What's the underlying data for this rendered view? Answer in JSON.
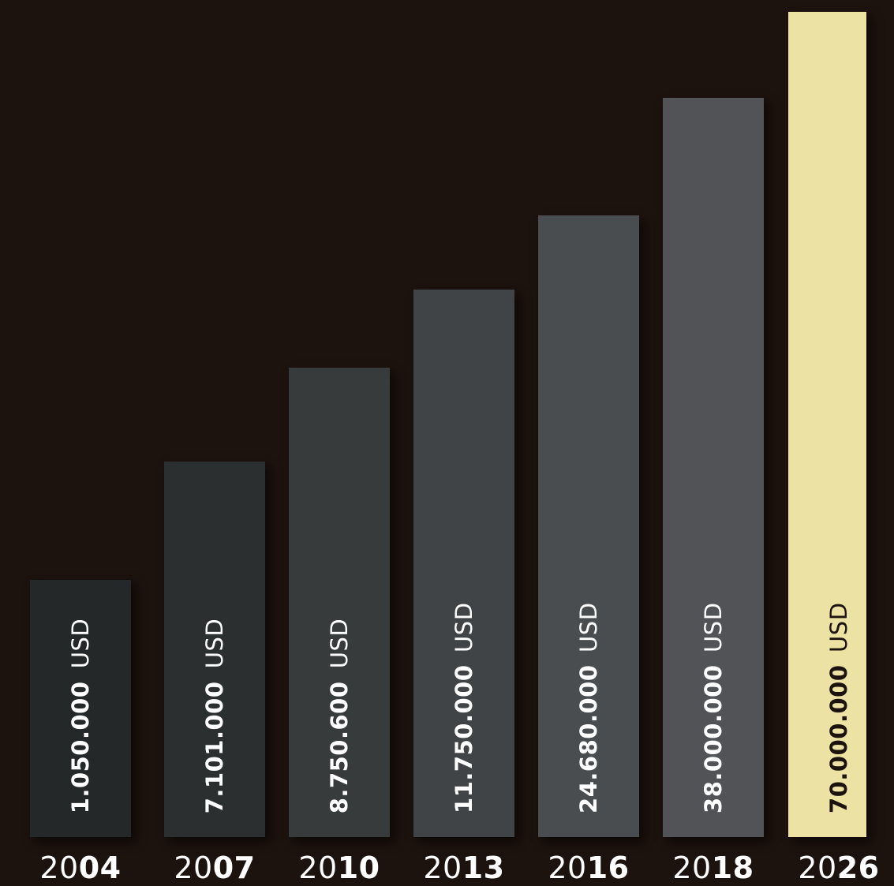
{
  "chart_data": {
    "type": "bar",
    "categories": [
      "2004",
      "2007",
      "2010",
      "2013",
      "2016",
      "2018",
      "2026"
    ],
    "category_parts": [
      {
        "prefix": "20",
        "suffix": "04"
      },
      {
        "prefix": "20",
        "suffix": "07"
      },
      {
        "prefix": "20",
        "suffix": "10"
      },
      {
        "prefix": "20",
        "suffix": "13"
      },
      {
        "prefix": "20",
        "suffix": "16"
      },
      {
        "prefix": "20",
        "suffix": "18"
      },
      {
        "prefix": "20",
        "suffix": "26"
      }
    ],
    "values": [
      1050000,
      7101000,
      8750600,
      11750000,
      24680000,
      38000000,
      70000000
    ],
    "value_labels": [
      "1.050.000",
      "7.101.000",
      "8.750.600",
      "11.750.000",
      "24.680.000",
      "38.000.000",
      "70.000.000"
    ],
    "unit": "USD",
    "bar_colors": [
      "#252828",
      "#2c2f30",
      "#383b3c",
      "#414446",
      "#4a4d4f",
      "#515357",
      "#ebe2a3"
    ],
    "label_colors": [
      "#ffffff",
      "#ffffff",
      "#ffffff",
      "#ffffff",
      "#ffffff",
      "#ffffff",
      "#1c120e"
    ],
    "title": "",
    "xlabel": "",
    "ylabel": "",
    "grid": false,
    "legend": "none"
  }
}
